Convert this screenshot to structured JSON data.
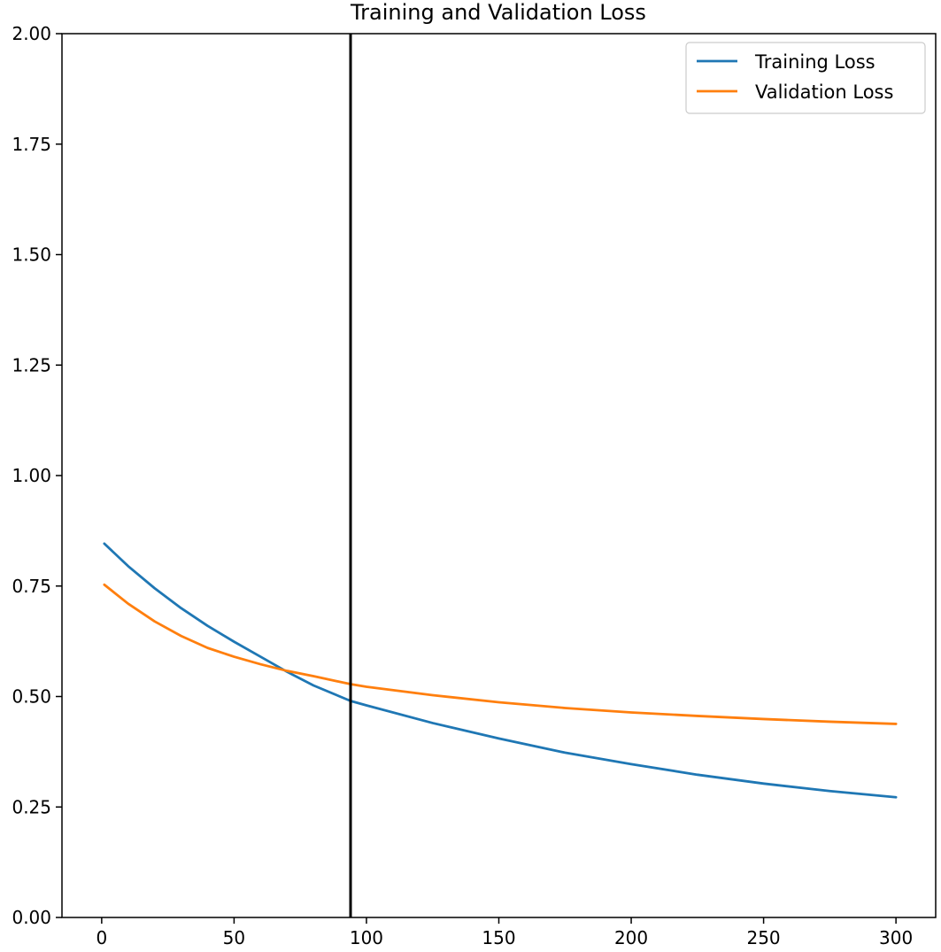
{
  "chart_data": {
    "type": "line",
    "title": "Training and Validation Loss",
    "xlabel": "",
    "ylabel": "",
    "xlim": [
      -15,
      315
    ],
    "ylim": [
      0,
      2.0
    ],
    "xticks": [
      0,
      50,
      100,
      150,
      200,
      250,
      300
    ],
    "yticks": [
      0.0,
      0.25,
      0.5,
      0.75,
      1.0,
      1.25,
      1.5,
      1.75,
      2.0
    ],
    "xtick_labels": [
      "0",
      "50",
      "100",
      "150",
      "200",
      "250",
      "300"
    ],
    "ytick_labels": [
      "0.00",
      "0.25",
      "0.50",
      "0.75",
      "1.00",
      "1.25",
      "1.50",
      "1.75",
      "2.00"
    ],
    "grid": false,
    "legend_position": "top-right",
    "vline": {
      "x": 94,
      "color": "#000000"
    },
    "series": [
      {
        "name": "Training Loss",
        "color": "#1f77b4",
        "x": [
          1,
          10,
          20,
          30,
          40,
          50,
          60,
          70,
          80,
          94,
          100,
          125,
          150,
          175,
          200,
          225,
          250,
          275,
          300
        ],
        "y": [
          0.846,
          0.795,
          0.745,
          0.7,
          0.66,
          0.624,
          0.59,
          0.556,
          0.525,
          0.49,
          0.48,
          0.44,
          0.405,
          0.373,
          0.347,
          0.323,
          0.303,
          0.286,
          0.272
        ]
      },
      {
        "name": "Validation Loss",
        "color": "#ff7f0e",
        "x": [
          1,
          10,
          20,
          30,
          40,
          50,
          60,
          70,
          80,
          94,
          100,
          125,
          150,
          175,
          200,
          225,
          250,
          275,
          300
        ],
        "y": [
          0.753,
          0.71,
          0.67,
          0.637,
          0.61,
          0.59,
          0.573,
          0.558,
          0.546,
          0.528,
          0.522,
          0.503,
          0.487,
          0.474,
          0.464,
          0.456,
          0.449,
          0.443,
          0.438
        ]
      }
    ]
  }
}
